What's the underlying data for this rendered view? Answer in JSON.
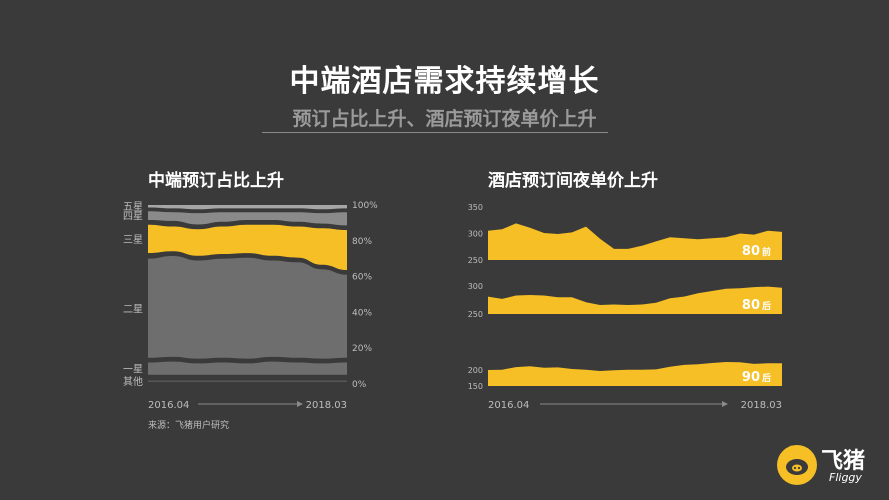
{
  "header": {
    "title": "中端酒店需求持续增长",
    "subtitle": "预订占比上升、酒店预订夜单价上升"
  },
  "left_panel": {
    "title": "中端预订占比上升",
    "source_note": "来源：飞猪用户研究"
  },
  "right_panel": {
    "title": "酒店预订间夜单价上升"
  },
  "logo": {
    "name": "飞猪",
    "sub": "Fliggy"
  },
  "colors": {
    "background": "#3a3a3a",
    "accent": "#f6bf26",
    "gray_light": "#9b9b9b",
    "gray_mid": "#6e6e6e",
    "gray_dark": "#555555",
    "axis_text": "#bdbdbd"
  },
  "chart_data": [
    {
      "type": "area",
      "title": "中端预订占比上升",
      "x_start_label": "2016.04",
      "x_end_label": "2018.03",
      "y_ticks": [
        "100%",
        "80%",
        "60%",
        "40%",
        "20%",
        "0%"
      ],
      "ylim": [
        0,
        100
      ],
      "stacked": true,
      "series": [
        {
          "name": "其他",
          "top": [
            2,
            2,
            2,
            2,
            2,
            2,
            2,
            2,
            2
          ],
          "bottom": [
            0,
            0,
            0,
            0,
            0,
            0,
            0,
            0,
            0
          ],
          "color": "#555555"
        },
        {
          "name": "一星",
          "top": [
            12,
            12.5,
            11.5,
            12,
            11.5,
            12.5,
            12,
            11.5,
            12
          ],
          "bottom": [
            4,
            4,
            4,
            4,
            4,
            4,
            4,
            4,
            4
          ],
          "color": "#6e6e6e"
        },
        {
          "name": "二星",
          "top": [
            70,
            71.5,
            69,
            70,
            70.5,
            69,
            68,
            64,
            61
          ],
          "bottom": [
            13.5,
            14,
            13,
            13.5,
            13,
            14,
            13.5,
            13,
            13.5
          ],
          "color": "#6e6e6e"
        },
        {
          "name": "三星",
          "top": [
            89,
            88,
            86.5,
            88,
            89,
            89,
            88,
            87,
            86
          ],
          "bottom": [
            72,
            73,
            70.5,
            71.5,
            72,
            70.5,
            69.5,
            65.5,
            62.5
          ],
          "color": "#f6bf26"
        },
        {
          "name": "四星",
          "top": [
            96.5,
            96,
            95.5,
            96,
            96,
            96,
            96,
            95.5,
            96
          ],
          "bottom": [
            90.5,
            90,
            88,
            89.5,
            90.5,
            90.5,
            89.5,
            88.5,
            87.5
          ],
          "color": "#8a8a8a"
        },
        {
          "name": "五星",
          "top": [
            100,
            100,
            100,
            100,
            100,
            100,
            100,
            100,
            100
          ],
          "bottom": [
            97.5,
            97,
            96.5,
            97,
            97,
            97,
            97,
            96.5,
            97
          ],
          "color": "#a6a6a6"
        }
      ]
    },
    {
      "type": "area",
      "title": "80前",
      "x_start_label": "2016.04",
      "x_end_label": "2018.03",
      "y_ticks": [
        350,
        300,
        250
      ],
      "ylim": [
        250,
        350
      ],
      "series": [
        {
          "name": "80前",
          "values": [
            305,
            308,
            319,
            311,
            301,
            299,
            302,
            313,
            290,
            271,
            271,
            277,
            285,
            293,
            291,
            289,
            291,
            293,
            300,
            298,
            305,
            303
          ]
        }
      ]
    },
    {
      "type": "area",
      "title": "80后",
      "x_start_label": "2016.04",
      "x_end_label": "2018.03",
      "y_ticks": [
        300,
        250
      ],
      "ylim": [
        250,
        300
      ],
      "series": [
        {
          "name": "80后",
          "values": [
            281,
            277,
            283,
            284,
            283,
            280,
            280,
            271,
            266,
            267,
            266,
            267,
            270,
            278,
            281,
            287,
            291,
            295,
            296,
            298,
            299,
            297
          ]
        }
      ]
    },
    {
      "type": "area",
      "title": "90后",
      "x_start_label": "2016.04",
      "x_end_label": "2018.03",
      "y_ticks": [
        200,
        150
      ],
      "ylim": [
        150,
        250
      ],
      "series": [
        {
          "name": "90后",
          "values": [
            200,
            201,
            209,
            212,
            207,
            208,
            203,
            201,
            197,
            199,
            201,
            201,
            202,
            210,
            216,
            218,
            222,
            225,
            224,
            219,
            221,
            221
          ]
        }
      ]
    }
  ]
}
